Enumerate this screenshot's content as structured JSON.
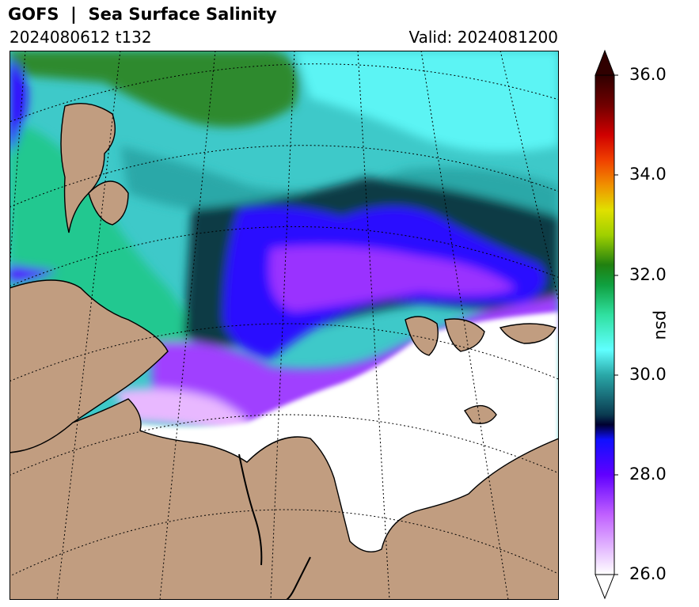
{
  "header": {
    "title": "GOFS  |  Sea Surface Salinity",
    "run": "2024080612 t132",
    "valid": "Valid: 2024081200"
  },
  "colorbar": {
    "label": "psu",
    "ticks": [
      "36.0",
      "34.0",
      "32.0",
      "30.0",
      "28.0",
      "26.0"
    ],
    "range": [
      26.0,
      36.0
    ],
    "extend": "both",
    "colors": {
      "low": "#ffffff",
      "purple": "#8a00ff",
      "blue": "#2200ff",
      "dark": "#0a2f3a",
      "teal": "#2aa8a8",
      "cyan": "#60ffff",
      "green": "#1ed18a",
      "darkgreen": "#208010",
      "yellow": "#ddee00",
      "orange": "#f08000",
      "red": "#d00000",
      "dark-red": "#300000"
    }
  },
  "map": {
    "land_color": "#c19d80",
    "ice_color": "#ffffff",
    "projection": "polar stereographic",
    "graticule": "dotted"
  }
}
